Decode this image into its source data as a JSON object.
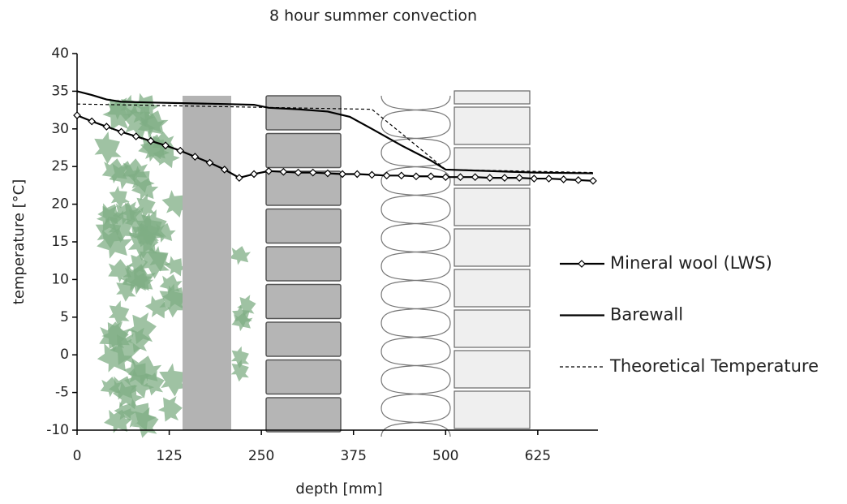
{
  "chart_data": {
    "type": "line",
    "title": "8 hour summer convection",
    "x_label": "depth [mm]",
    "y_label": "temperature [°C]",
    "xlim": [
      0,
      700
    ],
    "ylim": [
      -10,
      40
    ],
    "xticks": [
      0,
      125,
      250,
      375,
      500,
      625
    ],
    "yticks": [
      -10,
      -5,
      0,
      5,
      10,
      15,
      20,
      25,
      30,
      35,
      40
    ],
    "legend": "right",
    "series": [
      {
        "name": "Mineral wool (LWS)",
        "color": "#000000",
        "marker": "diamond",
        "dashed": false,
        "x": [
          0,
          20,
          40,
          60,
          80,
          100,
          120,
          140,
          160,
          180,
          200,
          220,
          240,
          260,
          280,
          300,
          320,
          340,
          360,
          380,
          400,
          420,
          440,
          460,
          480,
          500,
          520,
          540,
          560,
          580,
          600,
          620,
          640,
          660,
          680,
          700
        ],
        "values": [
          31.8,
          31.0,
          30.3,
          29.6,
          29.0,
          28.4,
          27.8,
          27.1,
          26.3,
          25.5,
          24.6,
          23.5,
          24.0,
          24.4,
          24.3,
          24.2,
          24.2,
          24.1,
          24.0,
          24.0,
          23.9,
          23.8,
          23.8,
          23.7,
          23.7,
          23.6,
          23.6,
          23.6,
          23.5,
          23.5,
          23.5,
          23.4,
          23.4,
          23.3,
          23.2,
          23.1
        ]
      },
      {
        "name": "Barewall",
        "color": "#000000",
        "marker": "none",
        "dashed": false,
        "x": [
          0,
          20,
          40,
          60,
          100,
          150,
          200,
          240,
          260,
          300,
          340,
          370,
          400,
          440,
          480,
          500,
          560,
          620,
          700
        ],
        "values": [
          35.0,
          34.5,
          33.9,
          33.6,
          33.5,
          33.4,
          33.3,
          33.2,
          32.8,
          32.6,
          32.3,
          31.6,
          30.0,
          27.8,
          25.8,
          24.6,
          24.4,
          24.2,
          24.1
        ]
      },
      {
        "name": "Theoretical Temperature",
        "color": "#000000",
        "marker": "none",
        "dashed": true,
        "x": [
          0,
          400,
          500,
          700
        ],
        "values": [
          33.3,
          32.6,
          24.6,
          24.2
        ]
      }
    ]
  }
}
